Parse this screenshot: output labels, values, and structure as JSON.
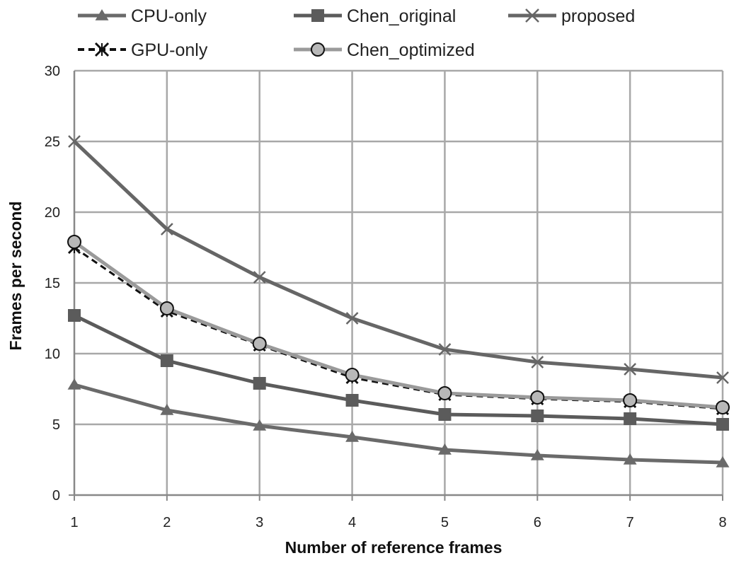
{
  "chart_data": {
    "type": "line",
    "title": "",
    "xlabel": "Number of reference frames",
    "ylabel": "Frames per second",
    "x": [
      1,
      2,
      3,
      4,
      5,
      6,
      7,
      8
    ],
    "xlim": [
      1,
      8
    ],
    "ylim": [
      0,
      30
    ],
    "y_ticks": [
      0,
      5,
      10,
      15,
      20,
      25,
      30
    ],
    "grid": true,
    "legend_position": "top",
    "series": [
      {
        "name": "CPU-only",
        "values": [
          7.8,
          6.0,
          4.9,
          4.1,
          3.2,
          2.8,
          2.5,
          2.3
        ],
        "color": "#6a6a6a",
        "marker": "triangle",
        "dashed": false
      },
      {
        "name": "Chen_original",
        "values": [
          12.7,
          9.5,
          7.9,
          6.7,
          5.7,
          5.6,
          5.4,
          5.0
        ],
        "color": "#5b5b5b",
        "marker": "square",
        "dashed": false
      },
      {
        "name": "proposed",
        "values": [
          25.0,
          18.8,
          15.4,
          12.5,
          10.3,
          9.4,
          8.9,
          8.3
        ],
        "color": "#666666",
        "marker": "x",
        "dashed": false
      },
      {
        "name": "GPU-only",
        "values": [
          17.5,
          13.0,
          10.6,
          8.3,
          7.1,
          6.8,
          6.6,
          6.1
        ],
        "color": "#111111",
        "marker": "star",
        "dashed": true
      },
      {
        "name": "Chen_optimized",
        "values": [
          17.9,
          13.2,
          10.7,
          8.5,
          7.2,
          6.9,
          6.7,
          6.2
        ],
        "color": "#9a9a9a",
        "marker": "circle",
        "dashed": false
      }
    ]
  }
}
